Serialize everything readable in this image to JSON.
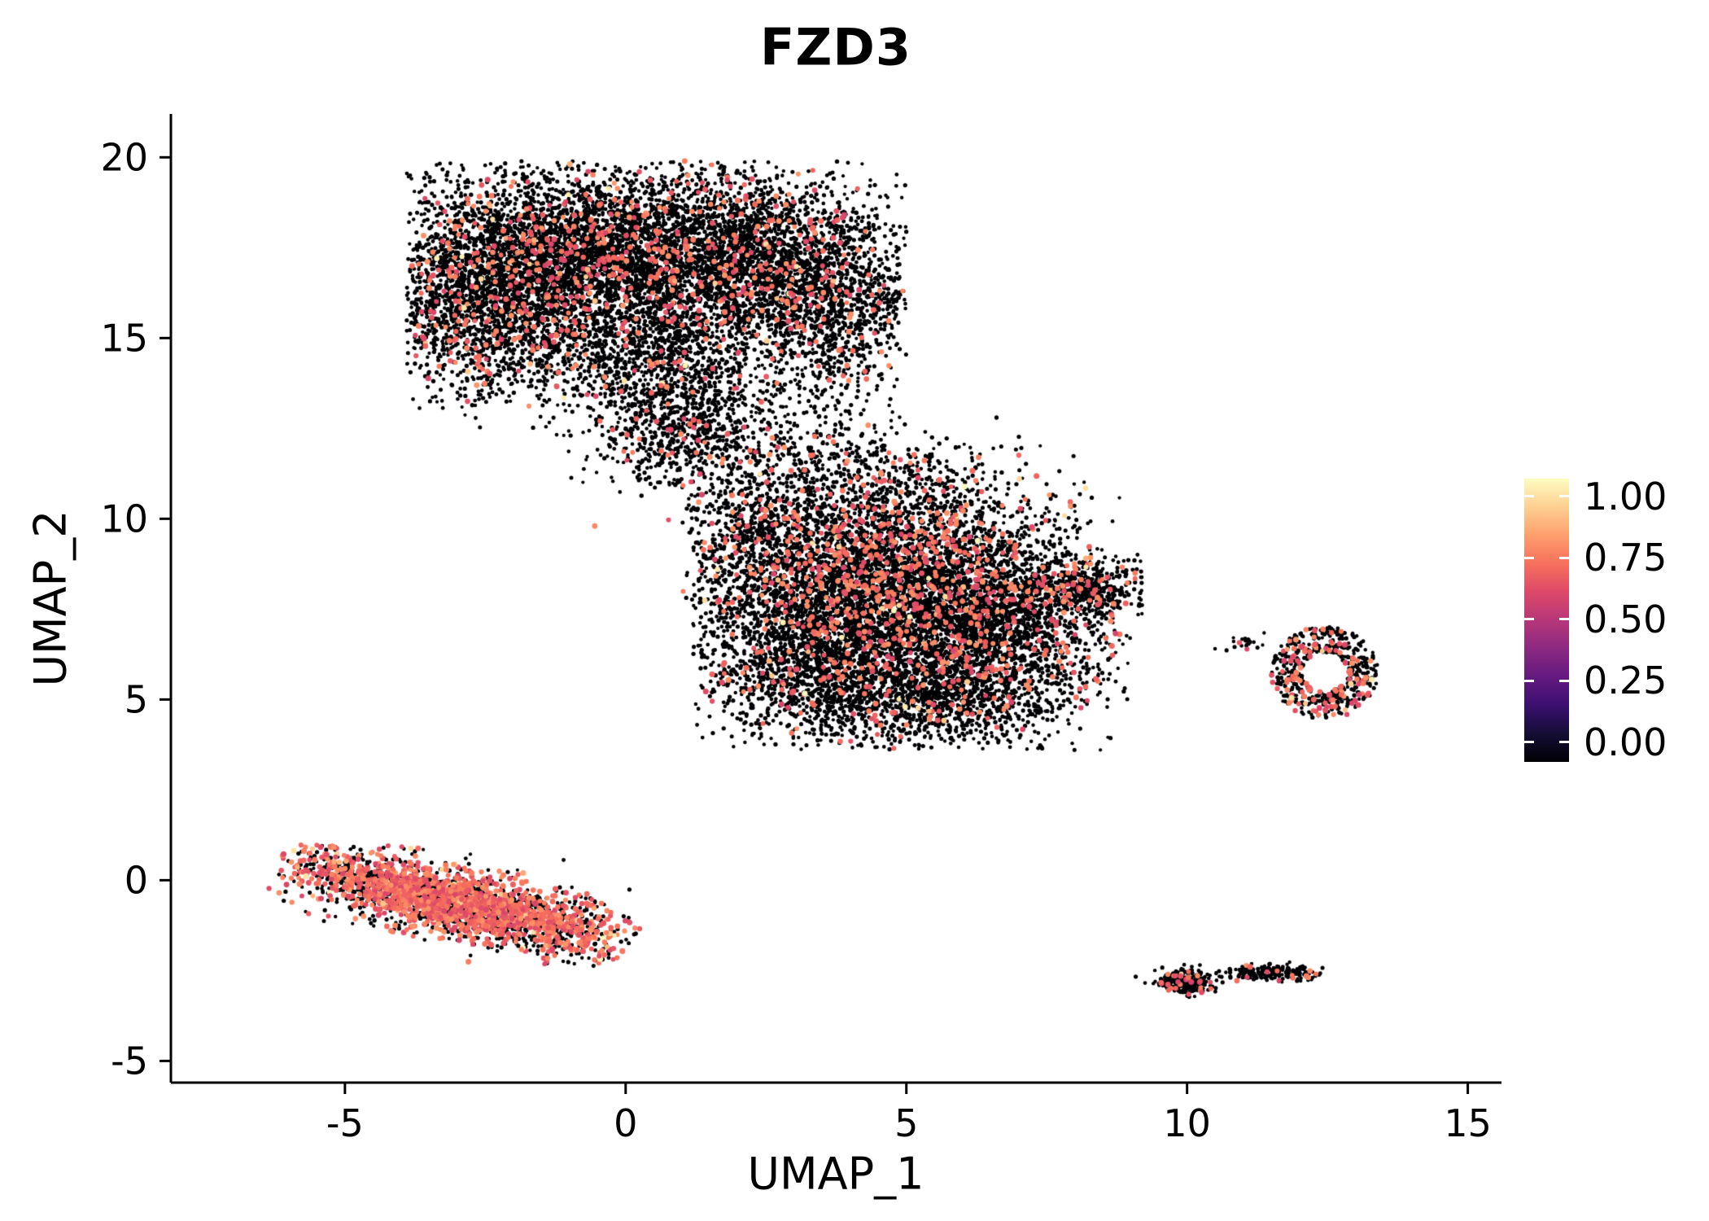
{
  "chart_data": {
    "type": "scatter",
    "title": "FZD3",
    "subtitle": "",
    "xlabel": "UMAP_1",
    "ylabel": "UMAP_2",
    "grid": false,
    "background": "#ffffff",
    "xlim": [
      -8.1,
      15.6
    ],
    "ylim": [
      -5.6,
      21.2
    ],
    "x_ticks": [
      {
        "v": -5,
        "label": "-5"
      },
      {
        "v": 0,
        "label": "0"
      },
      {
        "v": 5,
        "label": "5"
      },
      {
        "v": 10,
        "label": "10"
      },
      {
        "v": 15,
        "label": "15"
      }
    ],
    "y_ticks": [
      {
        "v": -5,
        "label": "-5"
      },
      {
        "v": 0,
        "label": "0"
      },
      {
        "v": 5,
        "label": "5"
      },
      {
        "v": 10,
        "label": "10"
      },
      {
        "v": 15,
        "label": "15"
      },
      {
        "v": 20,
        "label": "20"
      }
    ],
    "legend": {
      "position": "right",
      "ticks": [
        "1.00",
        "0.75",
        "0.50",
        "0.25",
        "0.00"
      ],
      "tick_values": [
        1.0,
        0.75,
        0.5,
        0.25,
        0.0
      ],
      "value_range": [
        0,
        1
      ]
    },
    "colormap": {
      "name": "magma",
      "stops": [
        {
          "t": 0.0,
          "color": "#000004"
        },
        {
          "t": 0.1,
          "color": "#140e36"
        },
        {
          "t": 0.2,
          "color": "#3b0f70"
        },
        {
          "t": 0.3,
          "color": "#641a80"
        },
        {
          "t": 0.4,
          "color": "#8c2981"
        },
        {
          "t": 0.5,
          "color": "#b73779"
        },
        {
          "t": 0.6,
          "color": "#de4968"
        },
        {
          "t": 0.7,
          "color": "#f7705c"
        },
        {
          "t": 0.8,
          "color": "#fe9f6d"
        },
        {
          "t": 0.9,
          "color": "#fecf92"
        },
        {
          "t": 1.0,
          "color": "#fcfdbf"
        }
      ]
    },
    "points": {
      "base_color": "#000004",
      "base_radius": 2.1,
      "expressing_radius": 2.9,
      "expressing_value_range": [
        0.58,
        0.78
      ],
      "total_points_estimate": 25000
    },
    "clusters": [
      {
        "name": "upper-lobe-left",
        "shape": "gauss",
        "cx": -2.4,
        "cy": 16.4,
        "sx": 1.1,
        "sy": 1.5,
        "n": 3000,
        "frac": 0.08,
        "clip": [
          -3.9,
          5.0,
          12.8,
          19.9
        ]
      },
      {
        "name": "upper-lobe-mid",
        "shape": "gauss",
        "cx": -0.4,
        "cy": 17.4,
        "sx": 1.2,
        "sy": 1.1,
        "n": 2400,
        "frac": 0.08,
        "clip": [
          -3.9,
          5.0,
          12.5,
          19.9
        ]
      },
      {
        "name": "upper-lobe-right",
        "shape": "gauss",
        "cx": 1.9,
        "cy": 17.2,
        "sx": 1.3,
        "sy": 1.3,
        "n": 2600,
        "frac": 0.07,
        "clip": [
          -3.9,
          5.0,
          12.5,
          19.9
        ]
      },
      {
        "name": "upper-lobe-far-right",
        "shape": "gauss",
        "cx": 3.6,
        "cy": 16.1,
        "sx": 0.9,
        "sy": 1.3,
        "n": 1300,
        "frac": 0.06,
        "clip": [
          -3.9,
          5.0,
          12.5,
          19.9
        ]
      },
      {
        "name": "upper-lobe-bottom",
        "shape": "gauss",
        "cx": 0.4,
        "cy": 14.5,
        "sx": 1.1,
        "sy": 0.9,
        "n": 1000,
        "frac": 0.05,
        "clip": [
          -3.9,
          5.0,
          12.2,
          19.9
        ]
      },
      {
        "name": "upper-neck",
        "shape": "gauss",
        "cx": 1.0,
        "cy": 12.5,
        "sx": 0.75,
        "sy": 0.8,
        "n": 650,
        "frac": 0.06,
        "clip": [
          -1.5,
          3.5,
          10.9,
          14.2
        ]
      },
      {
        "name": "bridge-sparse",
        "shape": "gauss",
        "cx": 2.6,
        "cy": 12.3,
        "sx": 1.3,
        "sy": 1.0,
        "n": 280,
        "frac": 0.04
      },
      {
        "name": "mid-core",
        "shape": "gauss",
        "cx": 4.5,
        "cy": 8.5,
        "sx": 1.5,
        "sy": 1.5,
        "n": 4200,
        "frac": 0.12,
        "clip": [
          1.2,
          9.0,
          3.6,
          12.0
        ]
      },
      {
        "name": "mid-right",
        "shape": "gauss",
        "cx": 6.3,
        "cy": 7.0,
        "sx": 1.2,
        "sy": 1.3,
        "n": 2600,
        "frac": 0.09,
        "clip": [
          1.2,
          9.0,
          3.6,
          12.0
        ]
      },
      {
        "name": "mid-left",
        "shape": "gauss",
        "cx": 3.3,
        "cy": 6.2,
        "sx": 1.0,
        "sy": 1.1,
        "n": 1500,
        "frac": 0.07,
        "clip": [
          1.2,
          9.0,
          3.6,
          12.0
        ]
      },
      {
        "name": "mid-bottom",
        "shape": "gauss",
        "cx": 5.2,
        "cy": 5.0,
        "sx": 1.2,
        "sy": 0.7,
        "n": 900,
        "frac": 0.06,
        "clip": [
          1.2,
          9.0,
          3.6,
          12.0
        ]
      },
      {
        "name": "mid-tail-right",
        "shape": "gauss",
        "cx": 8.2,
        "cy": 8.1,
        "sx": 0.55,
        "sy": 0.4,
        "n": 420,
        "frac": 0.1,
        "clip": [
          1.2,
          9.2,
          3.6,
          12.0
        ]
      },
      {
        "name": "mid-top-sparse",
        "shape": "gauss",
        "cx": 4.3,
        "cy": 10.9,
        "sx": 1.4,
        "sy": 0.8,
        "n": 380,
        "frac": 0.1
      },
      {
        "name": "mid-left-edge",
        "shape": "gauss",
        "cx": 2.2,
        "cy": 9.5,
        "sx": 0.7,
        "sy": 1.0,
        "n": 400,
        "frac": 0.08,
        "clip": [
          1.0,
          9.0,
          3.6,
          12.0
        ]
      },
      {
        "name": "lower-left-band",
        "shape": "band",
        "cx": -3.0,
        "cy": -0.62,
        "len": 3.5,
        "width": 0.42,
        "angle": -20,
        "n": 2700,
        "frac": 0.5,
        "clip": [
          -6.6,
          0.6,
          -2.4,
          1.0
        ]
      },
      {
        "name": "right-ring",
        "shape": "ring",
        "cx": 12.45,
        "cy": 5.75,
        "r0": 0.4,
        "r1": 0.95,
        "ry": 1.35,
        "n": 540,
        "frac": 0.22,
        "clip": [
          11.3,
          13.4,
          4.2,
          7.3
        ]
      },
      {
        "name": "right-ring-outliers",
        "shape": "gauss",
        "cx": 10.9,
        "cy": 6.55,
        "sx": 0.22,
        "sy": 0.1,
        "n": 22,
        "frac": 0.15
      },
      {
        "name": "bottom-right-left-clump",
        "shape": "gauss",
        "cx": 9.95,
        "cy": -2.8,
        "sx": 0.26,
        "sy": 0.16,
        "n": 260,
        "frac": 0.1
      },
      {
        "name": "bottom-right-right-clump",
        "shape": "gauss",
        "cx": 11.55,
        "cy": -2.55,
        "sx": 0.4,
        "sy": 0.11,
        "n": 190,
        "frac": 0.08
      },
      {
        "name": "bottom-right-mid-speck",
        "shape": "gauss",
        "cx": 11.05,
        "cy": -2.5,
        "sx": 0.06,
        "sy": 0.05,
        "n": 18,
        "frac": 0.05
      },
      {
        "name": "isolated-dot",
        "shape": "gauss",
        "cx": 7.4,
        "cy": 3.7,
        "sx": 0.05,
        "sy": 0.05,
        "n": 3,
        "frac": 0
      }
    ]
  }
}
